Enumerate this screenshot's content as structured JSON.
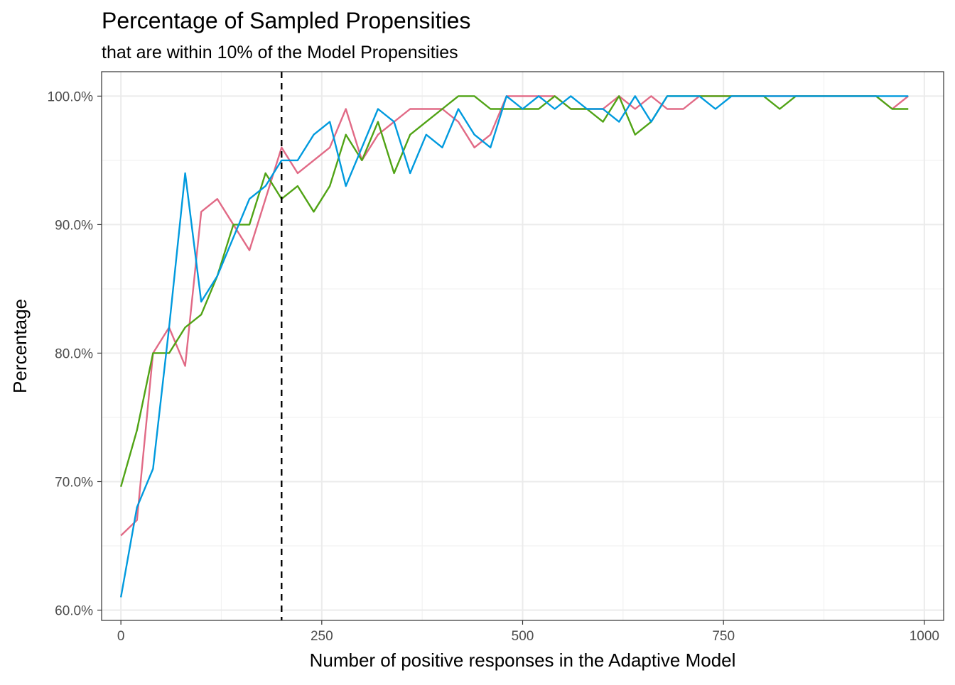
{
  "chart_data": {
    "type": "line",
    "title": "Percentage of Sampled Propensities",
    "subtitle": "that are within 10% of the Model Propensities",
    "xlabel": "Number of positive responses in the Adaptive Model",
    "ylabel": "Percentage",
    "xlim": [
      -24,
      1024
    ],
    "ylim": [
      59.2,
      101.9
    ],
    "x_ticks": [
      0,
      250,
      500,
      750,
      1000
    ],
    "x_tick_labels": [
      "0",
      "250",
      "500",
      "750",
      "1000"
    ],
    "x_minor_ticks": [
      125,
      375,
      625,
      875
    ],
    "y_ticks": [
      60,
      70,
      80,
      90,
      100
    ],
    "y_tick_labels": [
      "60.0%",
      "70.0%",
      "80.0%",
      "90.0%",
      "100.0%"
    ],
    "y_minor_ticks": [
      65,
      75,
      85,
      95
    ],
    "grid": true,
    "legend": "none",
    "reference_line": {
      "orientation": "vertical",
      "x": 200,
      "style": "dashed",
      "color": "#000000"
    },
    "x": [
      0,
      20,
      40,
      60,
      80,
      100,
      120,
      140,
      160,
      180,
      200,
      220,
      240,
      260,
      280,
      300,
      320,
      340,
      360,
      380,
      400,
      420,
      440,
      460,
      480,
      500,
      520,
      540,
      560,
      580,
      600,
      620,
      640,
      660,
      680,
      700,
      720,
      740,
      760,
      780,
      800,
      820,
      840,
      860,
      880,
      900,
      920,
      940,
      960,
      980
    ],
    "series": [
      {
        "color": "#E16A86",
        "values": [
          65.8,
          67,
          80,
          82,
          79,
          91,
          92,
          90,
          88,
          92,
          96,
          94,
          95,
          96,
          99,
          95,
          97,
          98,
          99,
          99,
          99,
          98,
          96,
          97,
          100,
          100,
          100,
          100,
          99,
          99,
          99,
          100,
          99,
          100,
          99,
          99,
          100,
          100,
          100,
          100,
          100,
          100,
          100,
          100,
          100,
          100,
          100,
          100,
          99,
          100
        ]
      },
      {
        "color": "#50A315",
        "values": [
          69.6,
          74,
          80,
          80,
          82,
          83,
          86,
          90,
          90,
          94,
          92,
          93,
          91,
          93,
          97,
          95,
          98,
          94,
          97,
          98,
          99,
          100,
          100,
          99,
          99,
          99,
          99,
          100,
          99,
          99,
          98,
          100,
          97,
          98,
          100,
          100,
          100,
          100,
          100,
          100,
          100,
          99,
          100,
          100,
          100,
          100,
          100,
          100,
          99,
          99
        ]
      },
      {
        "color": "#009ADE",
        "values": [
          61,
          68,
          71,
          82,
          94,
          84,
          86,
          89,
          92,
          93,
          95,
          95,
          97,
          98,
          93,
          96,
          99,
          98,
          94,
          97,
          96,
          99,
          97,
          96,
          100,
          99,
          100,
          99,
          100,
          99,
          99,
          98,
          100,
          98,
          100,
          100,
          100,
          99,
          100,
          100,
          100,
          100,
          100,
          100,
          100,
          100,
          100,
          100,
          100,
          100
        ]
      }
    ]
  }
}
